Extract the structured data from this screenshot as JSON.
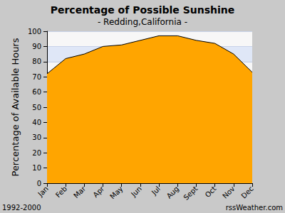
{
  "chart_data": {
    "type": "area",
    "title": "Percentage of Possible Sunshine",
    "subtitle": "- Redding,California -",
    "y_label": "Percentage of Available Hours",
    "categories": [
      "Jan",
      "Feb",
      "Mar",
      "Apr",
      "May",
      "Jun",
      "Jul",
      "Aug",
      "Sept",
      "Oct",
      "Nov",
      "Dec"
    ],
    "values": [
      72,
      82,
      85,
      90,
      91,
      94,
      97,
      97,
      94,
      92,
      85,
      73
    ],
    "color": "#ffa500",
    "ylim": [
      0,
      100
    ],
    "yticks": [
      0,
      10,
      20,
      30,
      40,
      50,
      60,
      70,
      80,
      90,
      100
    ],
    "grid": true,
    "annotations": [
      "1992-2000",
      "rssWeather.com"
    ]
  }
}
